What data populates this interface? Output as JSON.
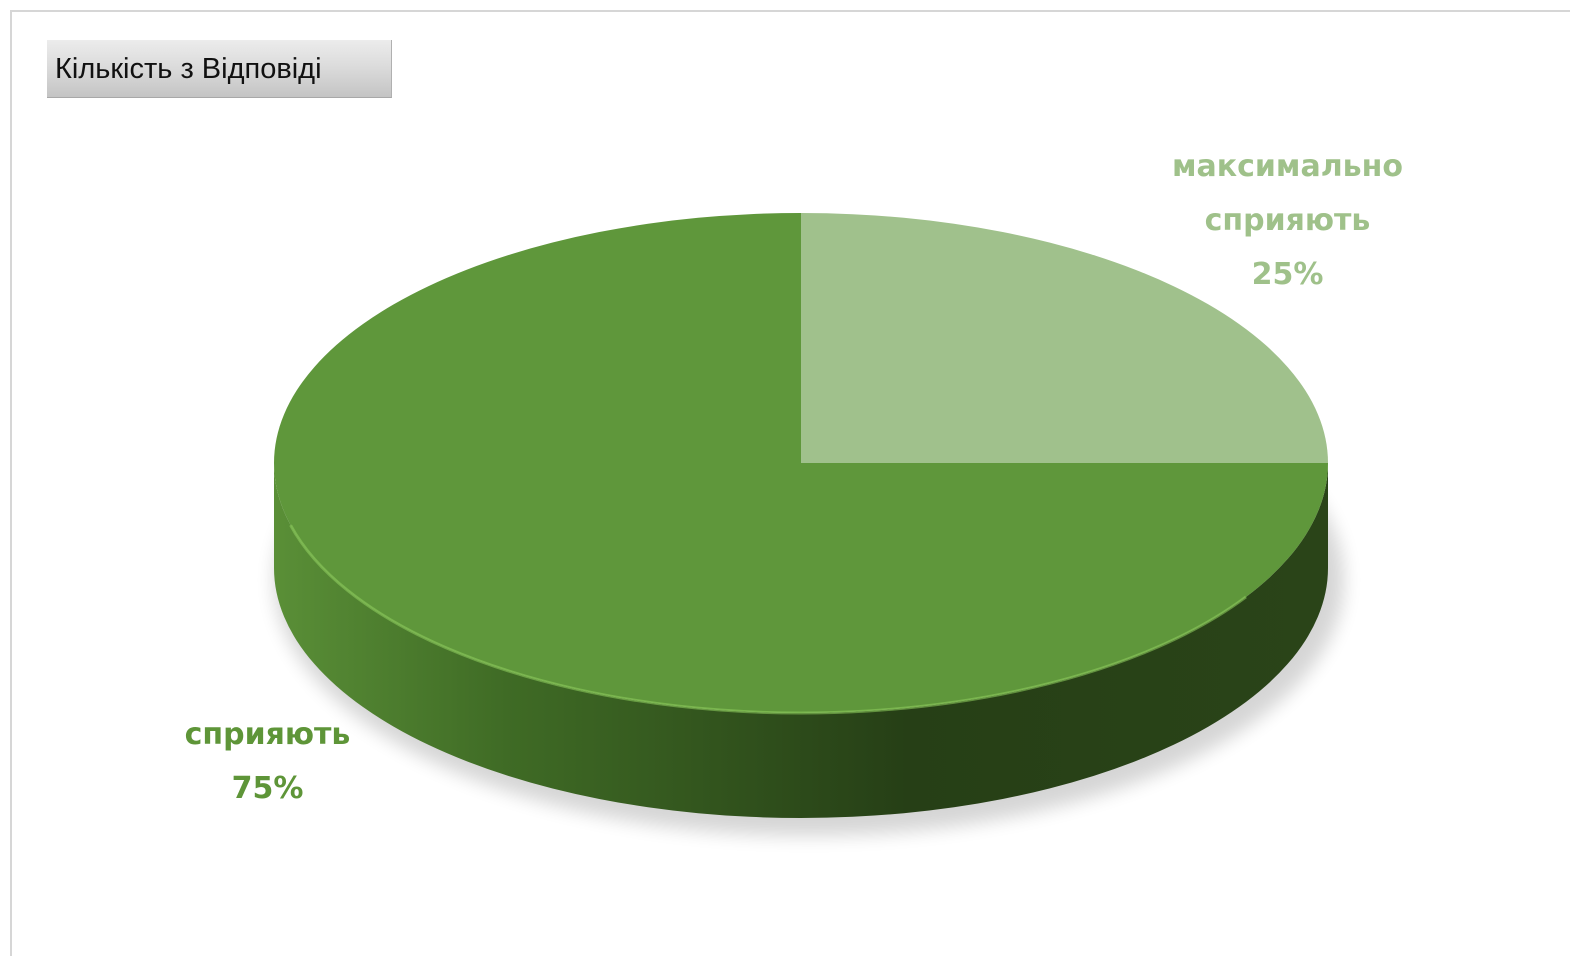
{
  "pivot_field_button": {
    "label": "Кількість з Відповіді"
  },
  "chart_data": {
    "type": "pie",
    "style": "3d",
    "title": "",
    "categories": [
      "максимально сприяють",
      "сприяють"
    ],
    "values": [
      25,
      75
    ],
    "unit": "%",
    "labels": [
      {
        "lines": [
          "максимально",
          "сприяють",
          "25%"
        ],
        "color": "#9fc18a"
      },
      {
        "lines": [
          "сприяють",
          "75%"
        ],
        "color": "#5e9538"
      }
    ],
    "colors": {
      "slice_light": "#a0c18c",
      "slice_dark": "#5f973b",
      "side_light": "#4f8030",
      "side_dark": "#263e15"
    },
    "legend": "none"
  }
}
